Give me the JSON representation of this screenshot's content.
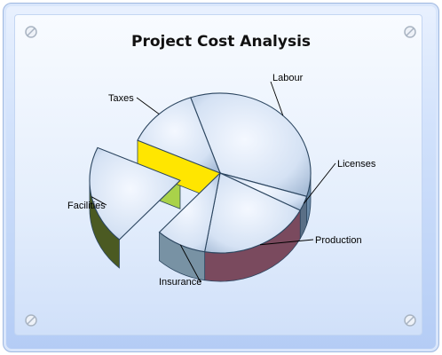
{
  "title": "Project Cost Analysis",
  "chart_data": {
    "type": "pie",
    "title": "Project Cost Analysis",
    "labels": [
      "Labour",
      "Licenses",
      "Production",
      "Insurance",
      "Facilities",
      "Taxes"
    ],
    "values": [
      35,
      3,
      20,
      9,
      20,
      13
    ],
    "exploded": [
      "Facilities"
    ],
    "legend": "none",
    "style": "3d"
  },
  "colors": {
    "slice_top": "#dfe9f8",
    "slice_edge": "#2c4660",
    "Labour": "#6a8aa8",
    "Licenses": "#5a6f86",
    "Production": "#7a4a5e",
    "Insurance": "#7892a4",
    "Insurance_right": "#2f6566",
    "Facilities": "#4b5a22",
    "Facilities_cut": "#a9d24a",
    "Taxes": "#ffe600"
  },
  "icons": [
    "screw-icon",
    "screw-icon",
    "screw-icon",
    "screw-icon"
  ]
}
